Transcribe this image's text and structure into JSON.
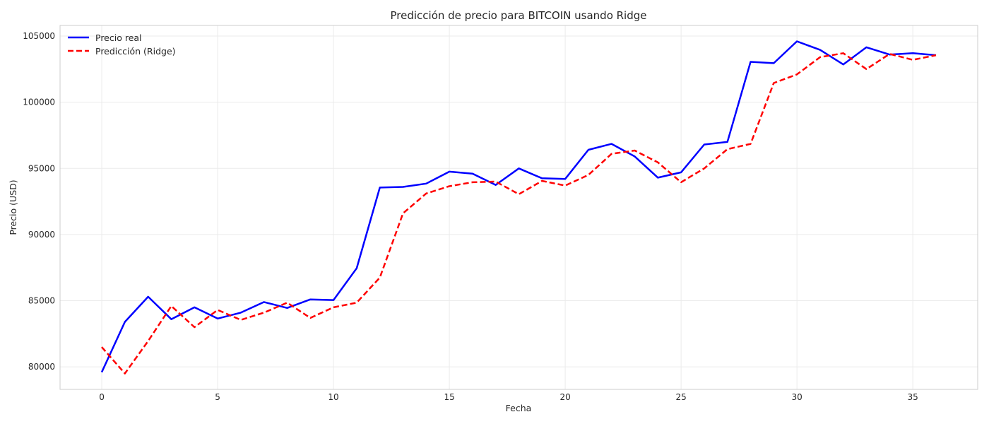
{
  "chart_data": {
    "type": "line",
    "title": "Predicción de precio para BITCOIN usando Ridge",
    "xlabel": "Fecha",
    "ylabel": "Precio (USD)",
    "xlim": [
      -1.8,
      37.8
    ],
    "ylim": [
      78300,
      105800
    ],
    "xticks": [
      0,
      5,
      10,
      15,
      20,
      25,
      30,
      35
    ],
    "yticks": [
      80000,
      85000,
      90000,
      95000,
      100000,
      105000
    ],
    "grid": true,
    "legend_position": "top-left",
    "x": [
      0,
      1,
      2,
      3,
      4,
      5,
      6,
      7,
      8,
      9,
      10,
      11,
      12,
      13,
      14,
      15,
      16,
      17,
      18,
      19,
      20,
      21,
      22,
      23,
      24,
      25,
      26,
      27,
      28,
      29,
      30,
      31,
      32,
      33,
      34,
      35,
      36
    ],
    "series": [
      {
        "name": "Precio real",
        "color": "#0000ff",
        "style": "solid",
        "values": [
          79600,
          83400,
          85300,
          83600,
          84500,
          83650,
          84100,
          84900,
          84450,
          85100,
          85050,
          87450,
          93550,
          93600,
          93850,
          94750,
          94600,
          93750,
          95000,
          94250,
          94200,
          96400,
          96850,
          95900,
          94300,
          94700,
          96800,
          97000,
          103050,
          102950,
          104600,
          103950,
          102850,
          104150,
          103600,
          103700,
          103550
        ]
      },
      {
        "name": "Predicción (Ridge)",
        "color": "#ff0000",
        "style": "dashed",
        "values": [
          81500,
          79500,
          81950,
          84600,
          83000,
          84300,
          83550,
          84100,
          84850,
          83700,
          84500,
          84850,
          86750,
          91600,
          93100,
          93650,
          93950,
          94000,
          93050,
          94050,
          93700,
          94500,
          96100,
          96350,
          95450,
          93950,
          95000,
          96450,
          96850,
          101450,
          102100,
          103400,
          103700,
          102500,
          103650,
          103200,
          103550
        ]
      }
    ]
  }
}
